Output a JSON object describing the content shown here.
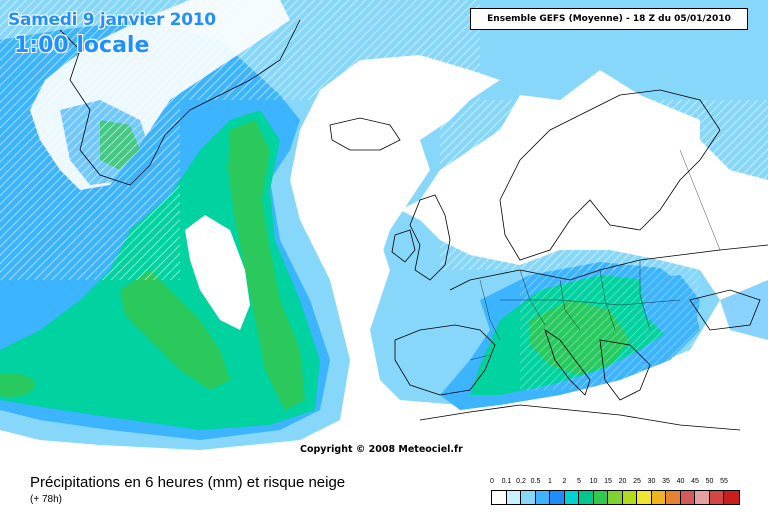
{
  "header": {
    "date": "Samedi 9 janvier 2010",
    "time": "1:00 locale",
    "model_run": "Ensemble GEFS (Moyenne)  - 18 Z du 05/01/2010"
  },
  "map": {
    "copyright": "Copyright © 2008 Meteociel.fr"
  },
  "footer": {
    "title": "Précipitations en 6 heures (mm) et risque neige",
    "subtitle": "(+ 78h)"
  },
  "legend": {
    "labels": [
      "0",
      "0.1",
      "0.2",
      "0.5",
      "1",
      "2",
      "5",
      "10",
      "15",
      "20",
      "25",
      "30",
      "35",
      "40",
      "45",
      "50",
      "55"
    ],
    "colors": [
      "#ffffff",
      "#c8f0ff",
      "#87d7fa",
      "#3cb4ff",
      "#1e8cff",
      "#00d2d2",
      "#00c88c",
      "#32c850",
      "#7fd232",
      "#b4dc1e",
      "#f0e632",
      "#f0b41e",
      "#e68232",
      "#d25a5a",
      "#e6a0a0",
      "#d24646",
      "#c81e1e"
    ]
  },
  "colors": {
    "ocean_light": "#bfeefc",
    "precip_light": "#87d7fa",
    "precip_medium": "#3cb4ff",
    "precip_strong": "#00d2a0",
    "precip_heavy": "#32c850",
    "snow_hatch": "#ffffff"
  }
}
